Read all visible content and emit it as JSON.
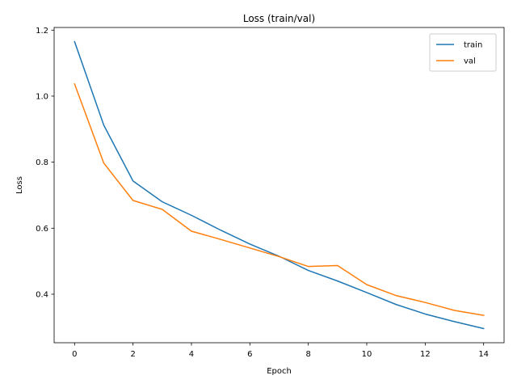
{
  "chart_data": {
    "type": "line",
    "title": "Loss (train/val)",
    "xlabel": "Epoch",
    "ylabel": "Loss",
    "x": [
      0,
      1,
      2,
      3,
      4,
      5,
      6,
      7,
      8,
      9,
      10,
      11,
      12,
      13,
      14
    ],
    "xlim": [
      -0.7,
      14.7
    ],
    "ylim": [
      0.253,
      1.208
    ],
    "xticks": [
      0,
      2,
      4,
      6,
      8,
      10,
      12,
      14
    ],
    "yticks": [
      0.4,
      0.6,
      0.8,
      1.0,
      1.2
    ],
    "grid": false,
    "legend_position": "upper right",
    "series": [
      {
        "name": "train",
        "color": "#1f77b4",
        "values": [
          1.165,
          0.912,
          0.743,
          0.68,
          0.639,
          0.594,
          0.552,
          0.515,
          0.472,
          0.44,
          0.405,
          0.369,
          0.34,
          0.317,
          0.296
        ]
      },
      {
        "name": "val",
        "color": "#ff7f0e",
        "values": [
          1.037,
          0.797,
          0.684,
          0.657,
          0.591,
          0.566,
          0.54,
          0.514,
          0.484,
          0.487,
          0.429,
          0.396,
          0.375,
          0.351,
          0.336
        ]
      }
    ]
  }
}
